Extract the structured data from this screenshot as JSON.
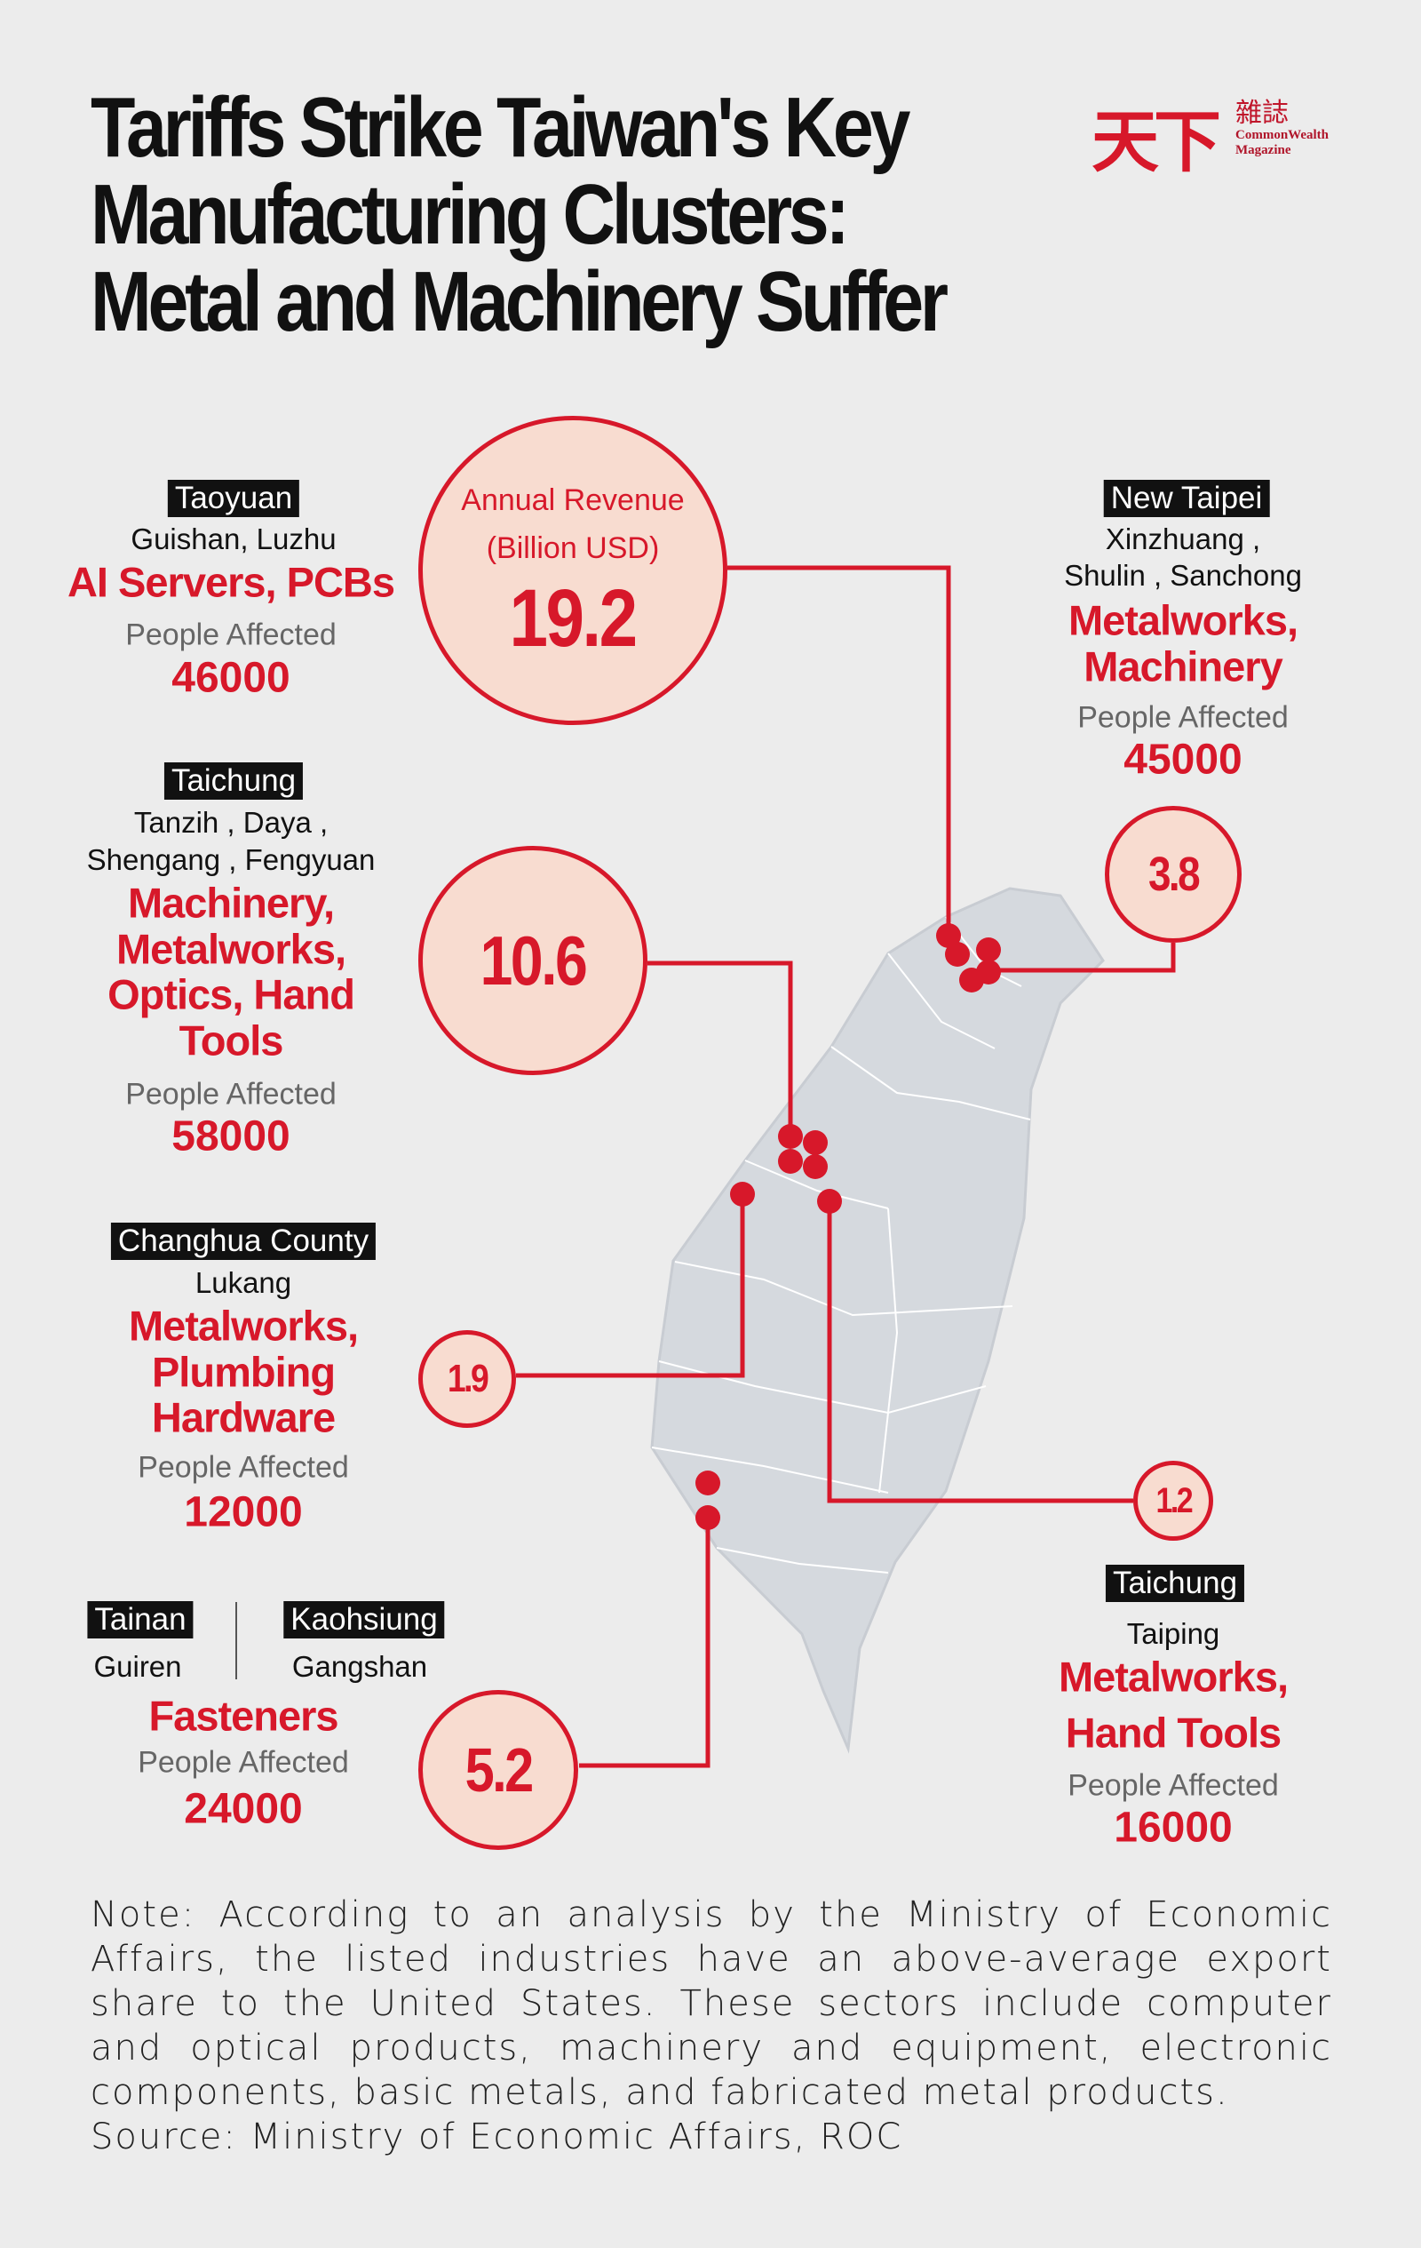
{
  "title": [
    "Tariffs Strike Taiwan's Key",
    "Manufacturing Clusters:",
    "Metal and Machinery Suffer"
  ],
  "logo": {
    "chinese": "天下",
    "chinese_small": "雜誌",
    "english": [
      "CommonWealth",
      "Magazine"
    ]
  },
  "colors": {
    "accent": "#d7182a",
    "circle_fill": "#f8dcd0",
    "background": "#ececec",
    "map": "#d5d9de"
  },
  "circle_label": [
    "Annual Revenue",
    "(Billion USD)"
  ],
  "clusters": [
    {
      "city": "Taoyuan",
      "districts": [
        "Guishan, Luzhu"
      ],
      "industries": [
        "AI Servers, PCBs"
      ],
      "people_label": "People Affected",
      "people": "46000",
      "revenue": "19.2"
    },
    {
      "city": "New Taipei",
      "districts": [
        "Xinzhuang ,",
        "Shulin , Sanchong"
      ],
      "industries": [
        "Metalworks,",
        "Machinery"
      ],
      "people_label": "People Affected",
      "people": "45000",
      "revenue": "3.8"
    },
    {
      "city": "Taichung",
      "districts": [
        "Tanzih , Daya ,",
        "Shengang , Fengyuan"
      ],
      "industries": [
        "Machinery,",
        "Metalworks,",
        "Optics, Hand",
        "Tools"
      ],
      "people_label": "People Affected",
      "people": "58000",
      "revenue": "10.6"
    },
    {
      "city": "Changhua County",
      "districts": [
        "Lukang"
      ],
      "industries": [
        "Metalworks,",
        "Plumbing",
        "Hardware"
      ],
      "people_label": "People Affected",
      "people": "12000",
      "revenue": "1.9"
    },
    {
      "city": "Taichung",
      "districts": [
        "Taiping"
      ],
      "industries": [
        "Metalworks,",
        "Hand Tools"
      ],
      "people_label": "People Affected",
      "people": "16000",
      "revenue": "1.2"
    },
    {
      "cities": [
        "Tainan",
        "Kaohsiung"
      ],
      "districts": [
        "Guiren",
        "Gangshan"
      ],
      "industries": [
        "Fasteners"
      ],
      "people_label": "People Affected",
      "people": "24000",
      "revenue": "5.2"
    }
  ],
  "note": "Note: According to an analysis by the Ministry of Economic Affairs, the listed industries have an above-average export share to the United States. These sectors include computer and optical products, machinery and equipment, electronic components, basic metals, and fabricated metal products.",
  "source": "Source: Ministry of Economic Affairs, ROC"
}
